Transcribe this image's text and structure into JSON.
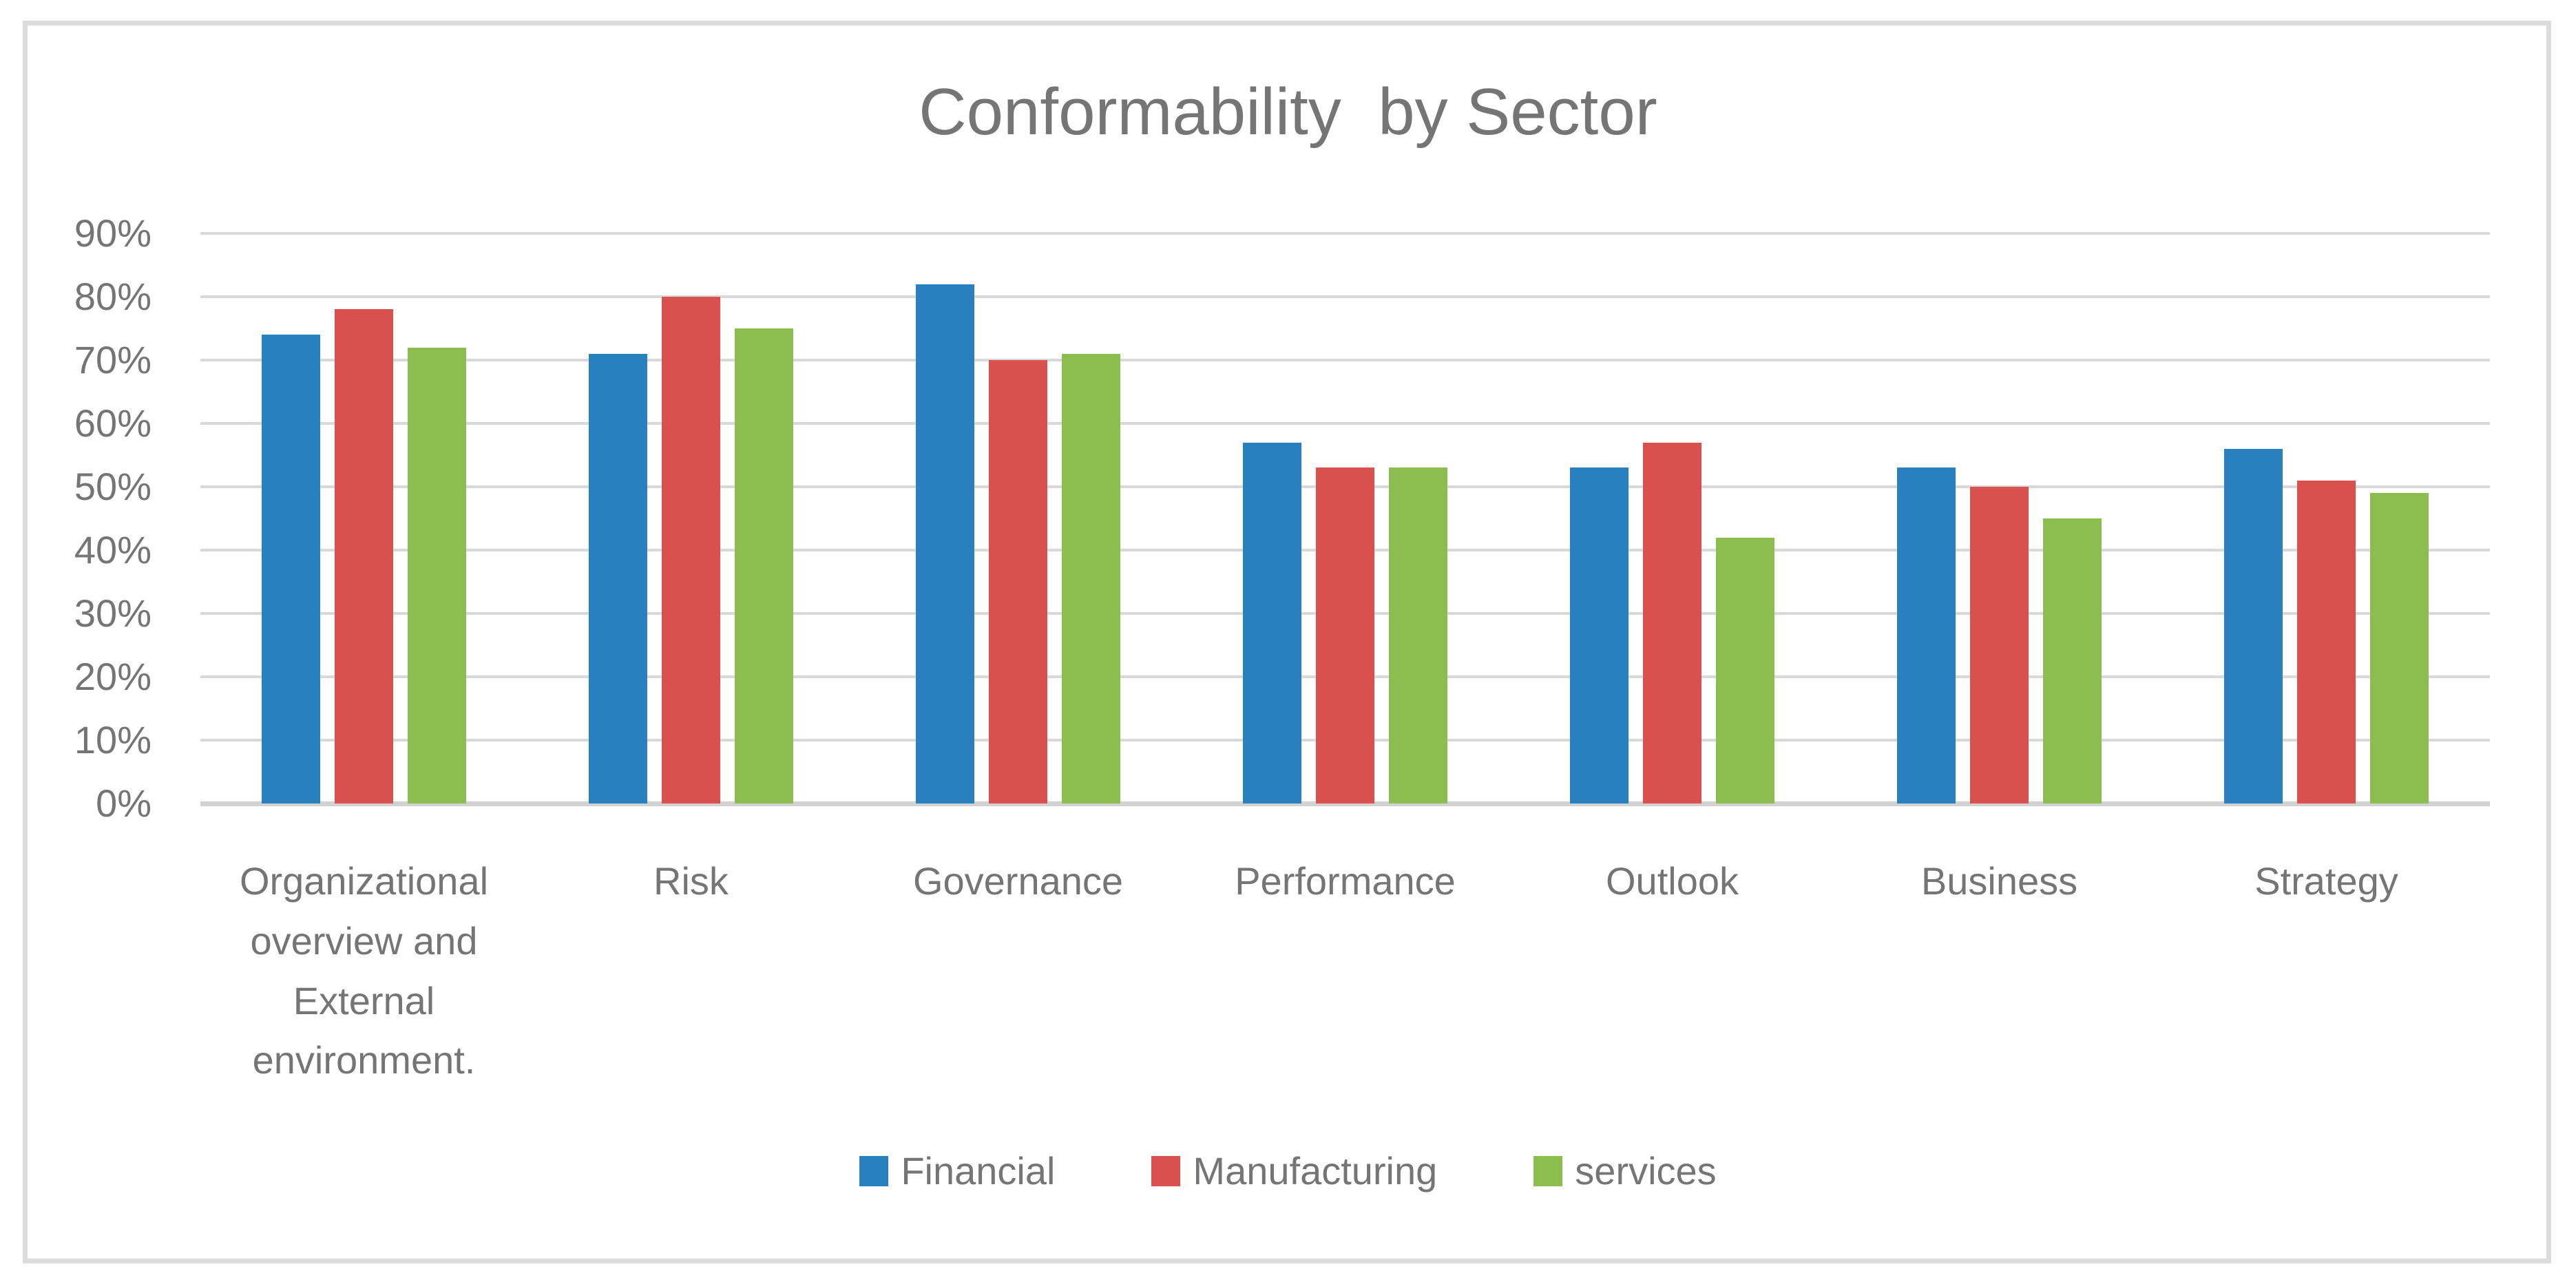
{
  "chart_data": {
    "type": "bar",
    "title": "Conformability  by Sector",
    "categories": [
      "Organizational overview and External environment.",
      "Risk",
      "Governance",
      "Performance",
      "Outlook",
      "Business",
      "Strategy"
    ],
    "series": [
      {
        "name": "Financial",
        "color": "#2980BF",
        "values": [
          74,
          71,
          82,
          57,
          53,
          53,
          56
        ]
      },
      {
        "name": "Manufacturing",
        "color": "#D9504C",
        "values": [
          78,
          80,
          70,
          53,
          57,
          50,
          51
        ]
      },
      {
        "name": "services",
        "color": "#8CBD4F",
        "values": [
          72,
          75,
          71,
          53,
          42,
          45,
          49
        ]
      }
    ],
    "y_axis": {
      "min": 0,
      "max": 90,
      "step": 10,
      "unit": "%",
      "tick_labels": [
        "90%",
        "80%",
        "70%",
        "60%",
        "50%",
        "40%",
        "30%",
        "20%",
        "10%",
        "0%"
      ]
    },
    "grid": "horizontal",
    "legend_position": "bottom",
    "text_color": "#757575",
    "gridline_color": "#D9D9D9",
    "frame_color": "#DCDCDC"
  }
}
